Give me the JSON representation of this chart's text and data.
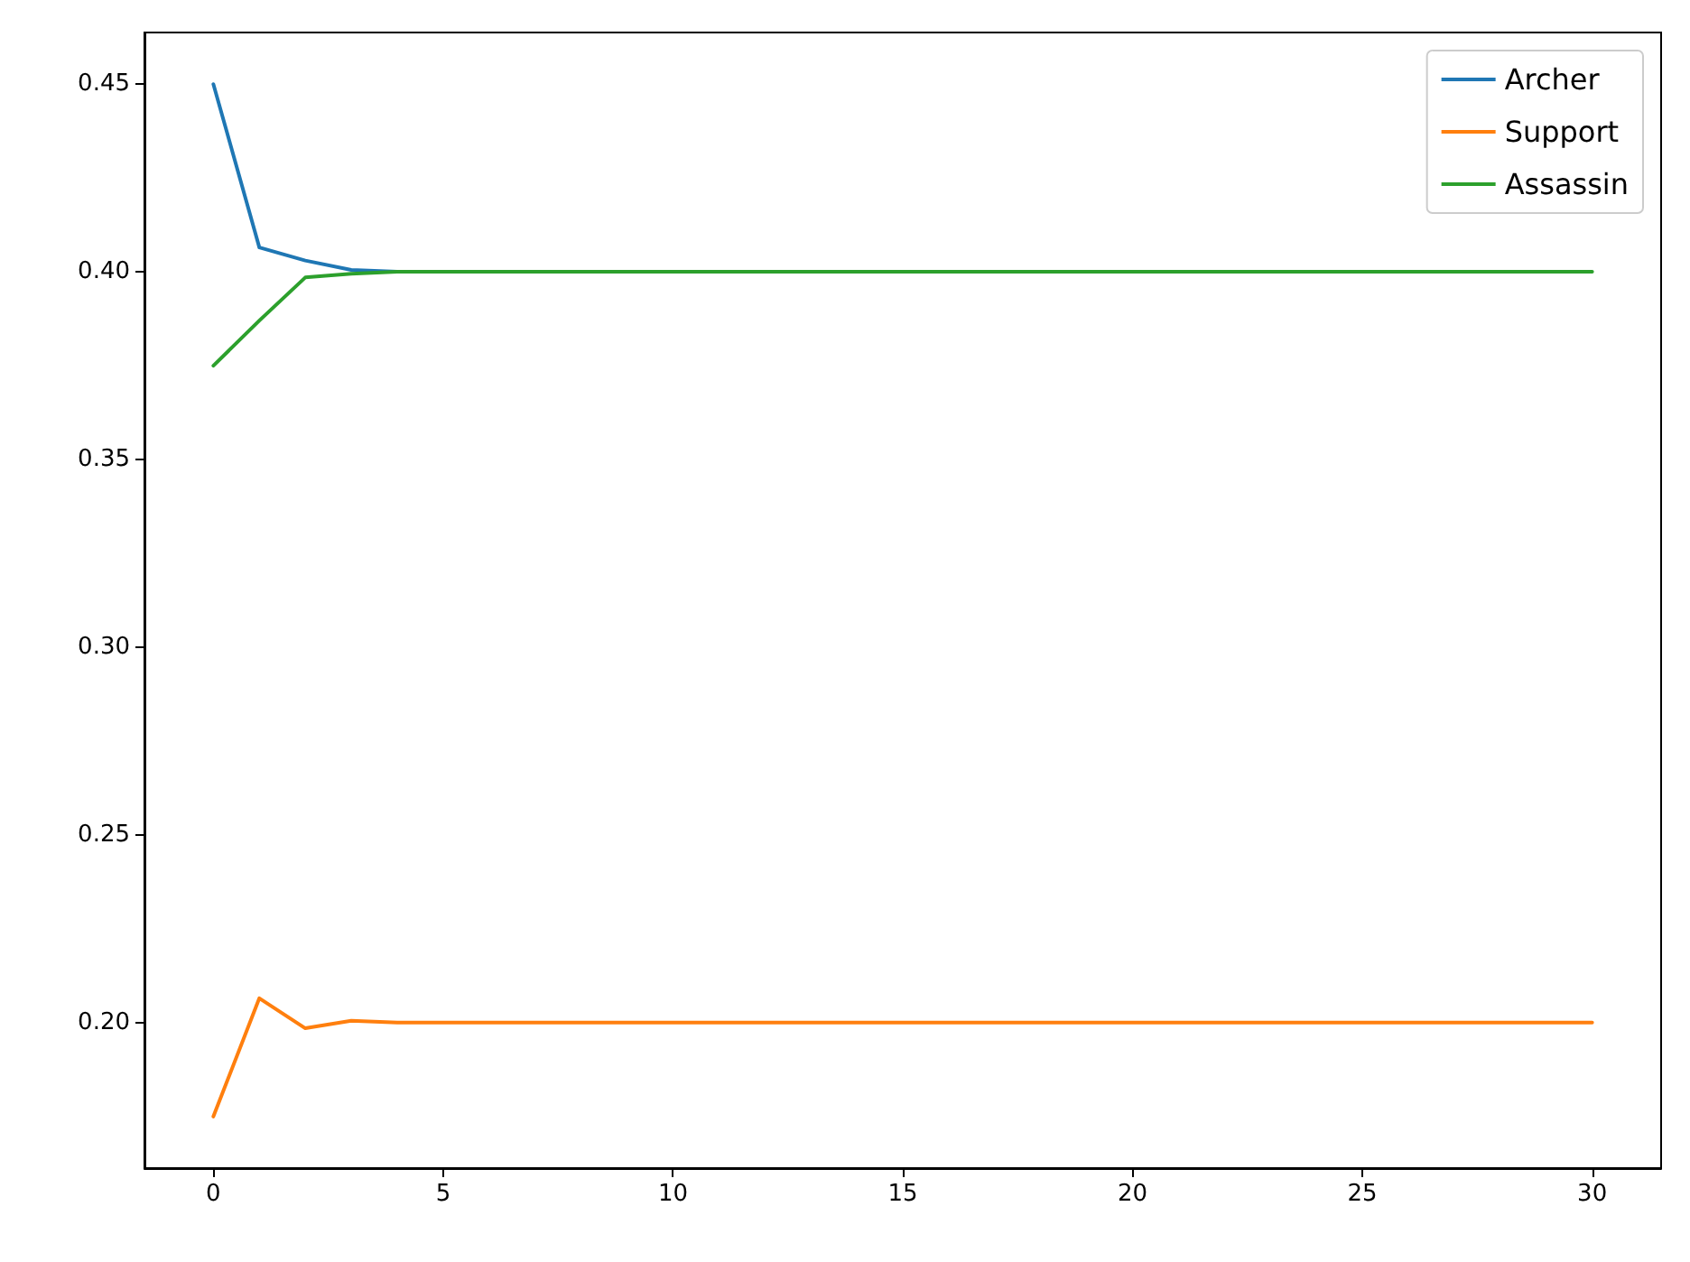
{
  "chart_data": {
    "type": "line",
    "x": [
      0,
      1,
      2,
      3,
      4,
      5,
      6,
      7,
      8,
      9,
      10,
      11,
      12,
      13,
      14,
      15,
      16,
      17,
      18,
      19,
      20,
      21,
      22,
      23,
      24,
      25,
      26,
      27,
      28,
      29,
      30
    ],
    "series": [
      {
        "name": "Archer",
        "color": "#1f77b4",
        "values": [
          0.45,
          0.4065,
          0.403,
          0.4005,
          0.4,
          null,
          null,
          null,
          null,
          null,
          null,
          null,
          null,
          null,
          null,
          null,
          null,
          null,
          null,
          null,
          null,
          null,
          null,
          null,
          null,
          null,
          null,
          null,
          null,
          null,
          null
        ]
      },
      {
        "name": "Support",
        "color": "#ff7f0e",
        "values": [
          0.175,
          0.2065,
          0.1985,
          0.2005,
          0.2,
          0.2,
          0.2,
          0.2,
          0.2,
          0.2,
          0.2,
          0.2,
          0.2,
          0.2,
          0.2,
          0.2,
          0.2,
          0.2,
          0.2,
          0.2,
          0.2,
          0.2,
          0.2,
          0.2,
          0.2,
          0.2,
          0.2,
          0.2,
          0.2,
          0.2,
          0.2
        ]
      },
      {
        "name": "Assassin",
        "color": "#2ca02c",
        "values": [
          0.375,
          0.387,
          0.3985,
          0.3995,
          0.4,
          0.4,
          0.4,
          0.4,
          0.4,
          0.4,
          0.4,
          0.4,
          0.4,
          0.4,
          0.4,
          0.4,
          0.4,
          0.4,
          0.4,
          0.4,
          0.4,
          0.4,
          0.4,
          0.4,
          0.4,
          0.4,
          0.4,
          0.4,
          0.4,
          0.4,
          0.4
        ]
      }
    ],
    "xlim": [
      -1.5,
      31.5
    ],
    "xticks": [
      0,
      5,
      10,
      15,
      20,
      25,
      30
    ],
    "ylim": [
      0.16125,
      0.46375
    ],
    "yticks": [
      {
        "value": 0.2,
        "label": "0.20"
      },
      {
        "value": 0.25,
        "label": "0.25"
      },
      {
        "value": 0.3,
        "label": "0.30"
      },
      {
        "value": 0.35,
        "label": "0.35"
      },
      {
        "value": 0.4,
        "label": "0.40"
      },
      {
        "value": 0.45,
        "label": "0.45"
      }
    ],
    "grid": false,
    "legend": "top right",
    "marker": "none",
    "line_style": "solid"
  }
}
